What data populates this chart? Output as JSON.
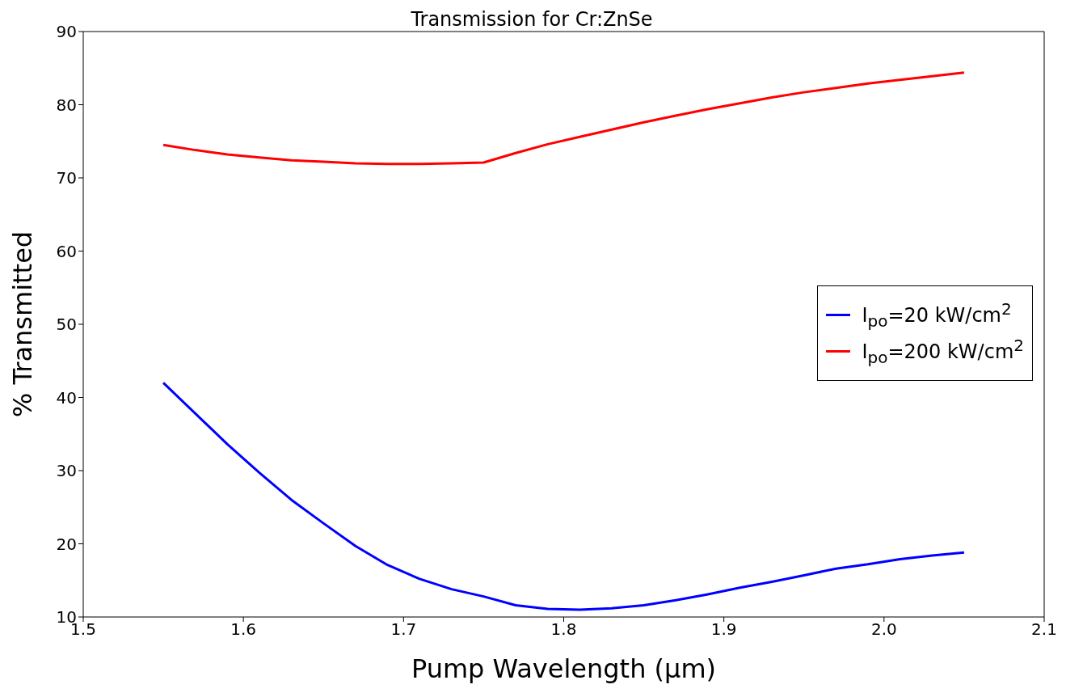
{
  "chart_data": {
    "type": "line",
    "title": "Transmission for Cr:ZnSe",
    "xlabel": "Pump Wavelength (μm)",
    "ylabel": "% Transmitted",
    "x": [
      1.55,
      1.57,
      1.59,
      1.61,
      1.63,
      1.65,
      1.67,
      1.69,
      1.71,
      1.73,
      1.75,
      1.77,
      1.79,
      1.81,
      1.83,
      1.85,
      1.87,
      1.89,
      1.91,
      1.93,
      1.95,
      1.97,
      1.99,
      2.01,
      2.03,
      2.05
    ],
    "series": [
      {
        "name": "I$_{po}$=20 kW/cm$^{2}$",
        "color": "#0000ff",
        "values": [
          42.0,
          37.8,
          33.6,
          29.7,
          26.0,
          22.8,
          19.7,
          17.1,
          15.2,
          13.8,
          12.8,
          11.6,
          11.1,
          11.0,
          11.2,
          11.6,
          12.3,
          13.1,
          14.0,
          14.8,
          15.7,
          16.6,
          17.2,
          17.9,
          18.4,
          18.8
        ]
      },
      {
        "name": "I$_{po}$=200 kW/cm$^{2}$",
        "color": "#ff0000",
        "values": [
          74.5,
          73.8,
          73.2,
          72.8,
          72.4,
          72.2,
          72.0,
          71.9,
          71.9,
          72.0,
          72.1,
          73.4,
          74.6,
          75.6,
          76.6,
          77.6,
          78.5,
          79.4,
          80.2,
          81.0,
          81.7,
          82.3,
          82.9,
          83.4,
          83.9,
          84.4
        ]
      }
    ],
    "xlim": [
      1.5,
      2.1
    ],
    "xticks": [
      1.5,
      1.6,
      1.7,
      1.8,
      1.9,
      {
        "value": 2,
        "label": "2.0"
      },
      2.1
    ],
    "ylim": [
      10,
      90
    ],
    "yticks": [
      10,
      20,
      30,
      40,
      50,
      60,
      70,
      80,
      90
    ],
    "grid": false,
    "legend": "right",
    "marker": "none",
    "line_style": "solid"
  }
}
